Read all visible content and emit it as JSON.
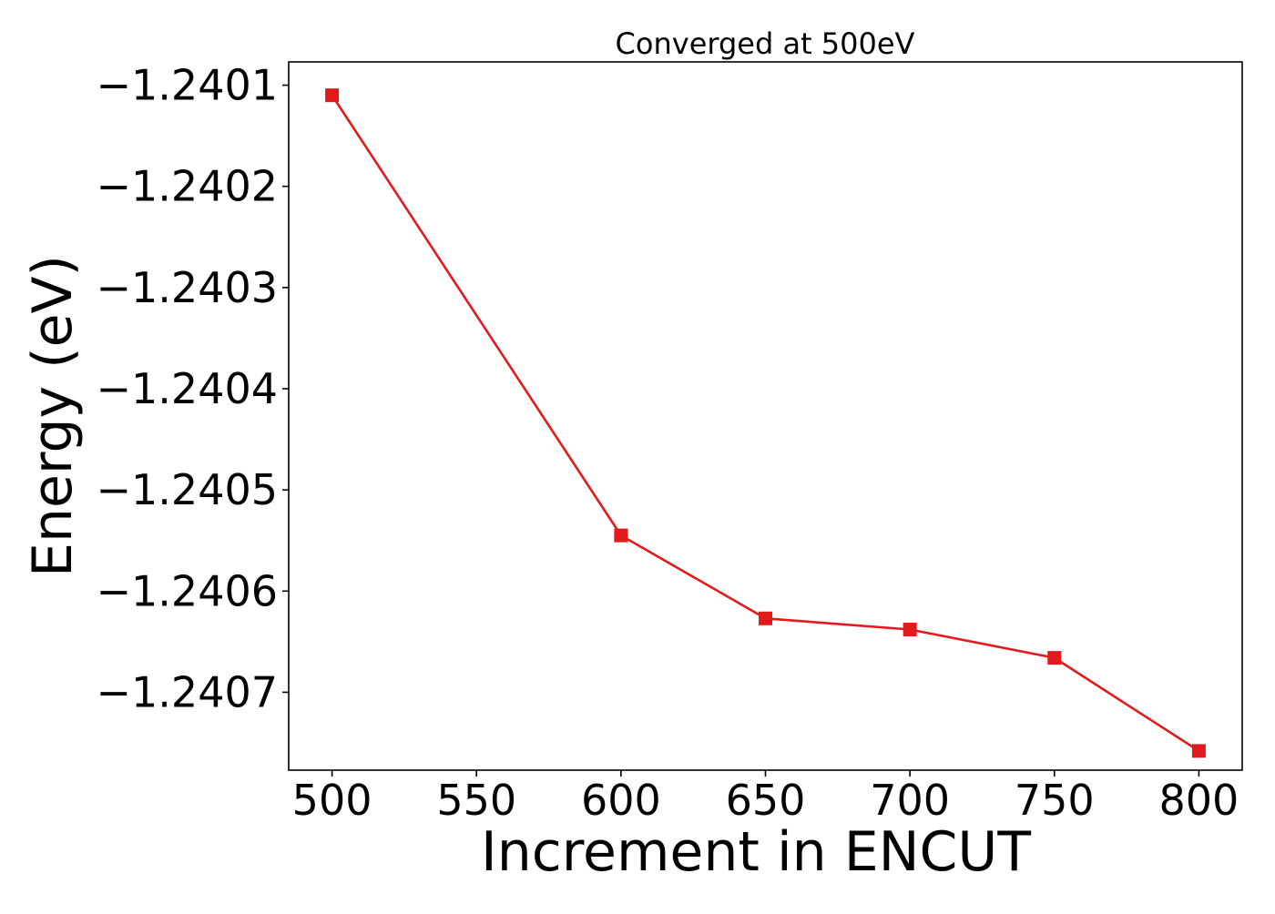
{
  "chart_data": {
    "type": "line",
    "title": "Converged at 500eV",
    "xlabel": "Increment in ENCUT",
    "ylabel": "Energy (eV)",
    "x": [
      500,
      600,
      650,
      700,
      750,
      800
    ],
    "series": [
      {
        "values": [
          -1.24011,
          -1.240545,
          -1.240627,
          -1.240638,
          -1.240666,
          -1.240758
        ]
      }
    ],
    "xticks": [
      500,
      550,
      600,
      650,
      700,
      750,
      800
    ],
    "xtick_labels": [
      "500",
      "550",
      "600",
      "650",
      "700",
      "750",
      "800"
    ],
    "yticks": [
      -1.2401,
      -1.2402,
      -1.2403,
      -1.2404,
      -1.2405,
      -1.2406,
      -1.2407
    ],
    "ytick_labels": [
      "−1.2401",
      "−1.2402",
      "−1.2403",
      "−1.2404",
      "−1.2405",
      "−1.2406",
      "−1.2407"
    ],
    "xlim": [
      485,
      815
    ],
    "ylim": [
      -1.240777,
      -1.240077
    ],
    "grid": false,
    "marker": "square",
    "colors": {
      "series": "#e31a1c",
      "axes": "#000000",
      "background": "#ffffff"
    }
  }
}
